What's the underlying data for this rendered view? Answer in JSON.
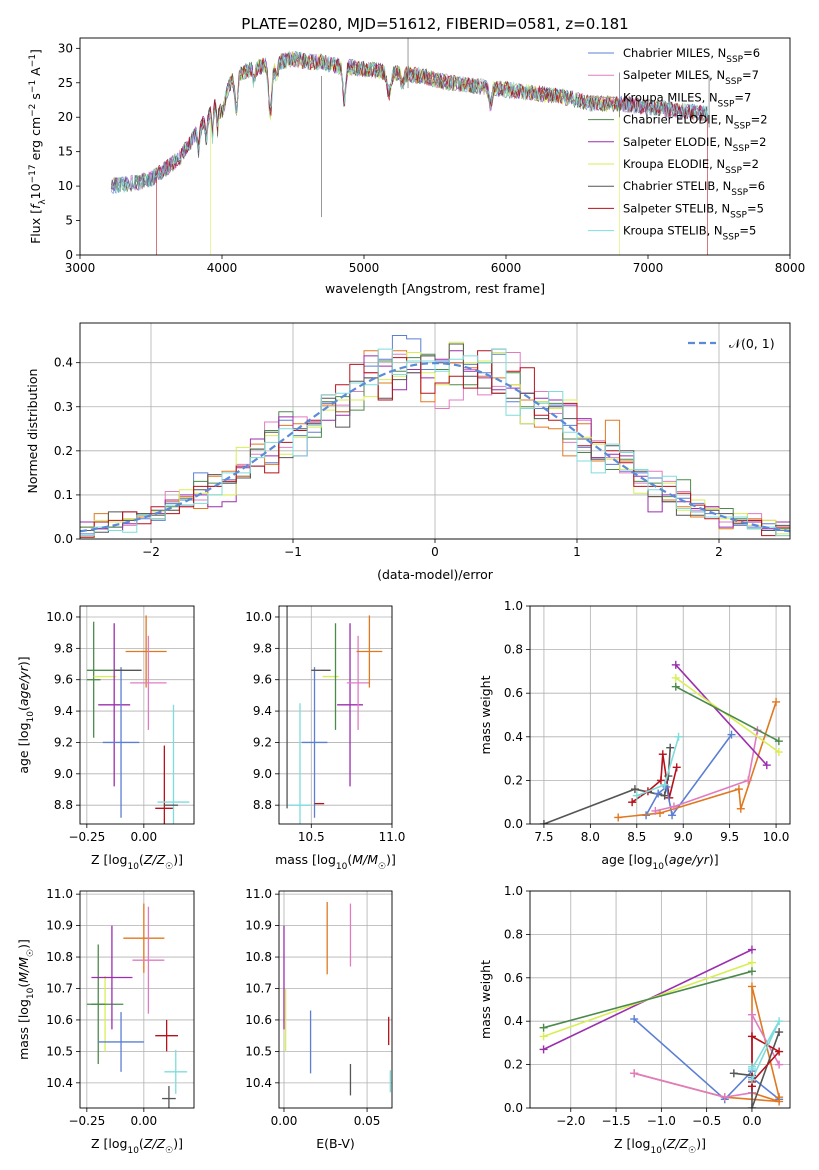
{
  "figure": {
    "title": "PLATE=0280, MJD=51612, FIBERID=0581, z=0.181"
  },
  "colors": {
    "Chabrier MILES": "#5b7fd4",
    "Salpeter MILES": "#e07cc0",
    "Kroupa MILES": "#b0a080",
    "Chabrier ELODIE": "#4c8a4c",
    "Salpeter ELODIE": "#9b2fae",
    "Kroupa ELODIE": "#d8ee55",
    "Chabrier STELIB": "#555555",
    "Salpeter STELIB": "#b5121b",
    "Kroupa STELIB": "#7fdcdc",
    "orange": "#e07820",
    "normal_fit": "#5b8bd8"
  },
  "chart_data": [
    {
      "id": "spectrum",
      "type": "line",
      "xlabel": "wavelength [Angstrom, rest frame]",
      "ylabel": "Flux [f_λ10^-17 erg cm^-2 s^-1 A^-1]",
      "xlim": [
        3000,
        8000
      ],
      "ylim": [
        0,
        31.5
      ],
      "xticks": [
        3000,
        4000,
        5000,
        6000,
        7000,
        8000
      ],
      "yticks": [
        0,
        5,
        10,
        15,
        20,
        25,
        30
      ],
      "legend_position": "top-right",
      "series": [
        {
          "name": "Chabrier MILES",
          "nssp": "6"
        },
        {
          "name": "Salpeter MILES",
          "nssp": "7"
        },
        {
          "name": "Kroupa MILES",
          "nssp": "7"
        },
        {
          "name": "Chabrier ELODIE",
          "nssp": "2"
        },
        {
          "name": "Salpeter ELODIE",
          "nssp": "2"
        },
        {
          "name": "Kroupa ELODIE",
          "nssp": "2"
        },
        {
          "name": "Chabrier STELIB",
          "nssp": "6"
        },
        {
          "name": "Salpeter STELIB",
          "nssp": "5"
        },
        {
          "name": "Kroupa STELIB",
          "nssp": "5"
        }
      ],
      "continuum": {
        "x": [
          3220,
          3400,
          3500,
          3600,
          3700,
          3800,
          3900,
          4000,
          4100,
          4200,
          4300,
          4400,
          4500,
          4600,
          4700,
          4800,
          5000,
          5200,
          5400,
          5600,
          5800,
          6000,
          6200,
          6400,
          6600,
          6800,
          7000,
          7200,
          7400
        ],
        "y": [
          10.0,
          10.5,
          11.0,
          12.5,
          14.0,
          17.0,
          20.0,
          24.0,
          26.0,
          27.0,
          27.5,
          28.0,
          28.5,
          28.0,
          28.0,
          27.5,
          27.0,
          26.5,
          26.0,
          25.0,
          24.5,
          24.0,
          23.5,
          23.0,
          22.0,
          22.0,
          21.5,
          21.0,
          20.5
        ]
      }
    },
    {
      "id": "residuals",
      "type": "line",
      "xlabel": "(data-model)/error",
      "ylabel": "Normed distribution",
      "xlim": [
        -2.5,
        2.5
      ],
      "ylim": [
        0,
        0.49
      ],
      "xticks": [
        -2,
        -1,
        0,
        1,
        2
      ],
      "yticks": [
        0.0,
        0.1,
        0.2,
        0.3,
        0.4
      ],
      "grid": true,
      "legend_position": "top-right",
      "normal_label": "𝒩(0, 1)",
      "hist_bins": 50,
      "hist_range": [
        -2.5,
        2.5
      ]
    },
    {
      "id": "age_vs_Z",
      "type": "scatter",
      "xlabel": "Z [log10(Z/Z☉)]",
      "ylabel": "age  [log10(age/yr)]",
      "xlim": [
        -0.28,
        0.22
      ],
      "ylim": [
        8.68,
        10.07
      ],
      "xticks": [
        -0.25,
        0.0
      ],
      "yticks": [
        8.8,
        9.0,
        9.2,
        9.4,
        9.6,
        9.8,
        10.0
      ],
      "grid": true,
      "points": [
        {
          "series": "Chabrier ELODIE",
          "x": -0.22,
          "y": 9.6,
          "xerr": 0.03,
          "yerr": 0.37
        },
        {
          "series": "Chabrier ELODIE",
          "x": -0.17,
          "y": 9.66,
          "xerr": 0.08,
          "yerr": 0.0
        },
        {
          "series": "Kroupa ELODIE",
          "x": -0.17,
          "y": 9.62,
          "xerr": 0.05,
          "yerr": 0.0
        },
        {
          "series": "Salpeter ELODIE",
          "x": -0.13,
          "y": 9.44,
          "xerr": 0.07,
          "yerr": 0.52
        },
        {
          "series": "Chabrier MILES",
          "x": -0.1,
          "y": 9.2,
          "xerr": 0.08,
          "yerr": 0.48
        },
        {
          "series": "Chabrier STELIB",
          "x": -0.07,
          "y": 9.66,
          "xerr": 0.06,
          "yerr": 0.0
        },
        {
          "series": "orange",
          "x": 0.01,
          "y": 9.78,
          "xerr": 0.09,
          "yerr": 0.23
        },
        {
          "series": "Salpeter MILES",
          "x": 0.02,
          "y": 9.58,
          "xerr": 0.08,
          "yerr": 0.3
        },
        {
          "series": "Salpeter STELIB",
          "x": 0.09,
          "y": 8.78,
          "xerr": 0.04,
          "yerr": 0.4
        },
        {
          "series": "Kroupa STELIB",
          "x": 0.13,
          "y": 8.82,
          "xerr": 0.07,
          "yerr": 0.62
        },
        {
          "series": "Chabrier STELIB",
          "x": 0.12,
          "y": 8.8,
          "xerr": 0.03,
          "yerr": 0.0
        }
      ]
    },
    {
      "id": "age_vs_mass",
      "type": "scatter",
      "xlabel": "mass [log10(M/M☉)]",
      "ylabel": "",
      "xlim": [
        10.3,
        11.0
      ],
      "ylim": [
        8.68,
        10.07
      ],
      "xticks": [
        10.5,
        11.0
      ],
      "yticks": [
        8.8,
        9.0,
        9.2,
        9.4,
        9.6,
        9.8,
        10.0
      ],
      "grid": true,
      "points": [
        {
          "series": "Chabrier STELIB",
          "x": 10.35,
          "y": 9.6,
          "xerr": 0.0,
          "yerr": 0.82
        },
        {
          "series": "Kroupa STELIB",
          "x": 10.43,
          "y": 8.8,
          "xerr": 0.07,
          "yerr": 0.65
        },
        {
          "series": "Chabrier MILES",
          "x": 10.52,
          "y": 9.2,
          "xerr": 0.08,
          "yerr": 0.48
        },
        {
          "series": "Chabrier STELIB",
          "x": 10.56,
          "y": 9.66,
          "xerr": 0.06,
          "yerr": 0.0
        },
        {
          "series": "Salpeter STELIB",
          "x": 10.55,
          "y": 8.81,
          "xerr": 0.03,
          "yerr": 0.0
        },
        {
          "series": "Kroupa ELODIE",
          "x": 10.62,
          "y": 9.62,
          "xerr": 0.05,
          "yerr": 0.0
        },
        {
          "series": "Chabrier ELODIE",
          "x": 10.65,
          "y": 9.62,
          "xerr": 0.0,
          "yerr": 0.34
        },
        {
          "series": "Salpeter ELODIE",
          "x": 10.74,
          "y": 9.44,
          "xerr": 0.08,
          "yerr": 0.52
        },
        {
          "series": "Salpeter MILES",
          "x": 10.79,
          "y": 9.58,
          "xerr": 0.07,
          "yerr": 0.3
        },
        {
          "series": "orange",
          "x": 10.86,
          "y": 9.78,
          "xerr": 0.08,
          "yerr": 0.23
        }
      ]
    },
    {
      "id": "weight_vs_age",
      "type": "line",
      "xlabel": "age  [log10(age/yr)]",
      "ylabel": "mass weight",
      "xlim": [
        7.35,
        10.15
      ],
      "ylim": [
        0,
        1.0
      ],
      "xticks": [
        7.5,
        8.0,
        8.5,
        9.0,
        9.5,
        10.0
      ],
      "yticks": [
        0.0,
        0.2,
        0.4,
        0.6,
        0.8,
        1.0
      ],
      "grid": true,
      "series": [
        {
          "name": "Chabrier STELIB",
          "x": [
            7.5,
            8.48,
            8.8,
            8.84,
            8.86
          ],
          "y": [
            0.0,
            0.16,
            0.13,
            0.22,
            0.35
          ]
        },
        {
          "name": "Salpeter STELIB",
          "x": [
            8.45,
            8.62,
            8.76,
            8.78,
            8.85,
            8.93
          ],
          "y": [
            0.1,
            0.15,
            0.2,
            0.32,
            0.12,
            0.26
          ]
        },
        {
          "name": "Chabrier MILES",
          "x": [
            8.6,
            8.73,
            8.82,
            8.88,
            9.52
          ],
          "y": [
            0.04,
            0.14,
            0.17,
            0.04,
            0.41
          ]
        },
        {
          "name": "orange",
          "x": [
            8.3,
            8.75,
            9.6,
            9.62,
            10.0
          ],
          "y": [
            0.03,
            0.05,
            0.16,
            0.07,
            0.56
          ]
        },
        {
          "name": "Salpeter MILES",
          "x": [
            8.7,
            8.9,
            9.7,
            9.8
          ],
          "y": [
            0.06,
            0.08,
            0.2,
            0.43
          ]
        },
        {
          "name": "Kroupa STELIB",
          "x": [
            8.5,
            8.8,
            8.95
          ],
          "y": [
            0.13,
            0.18,
            0.4
          ]
        },
        {
          "name": "Salpeter ELODIE",
          "x": [
            8.92,
            9.9
          ],
          "y": [
            0.73,
            0.27
          ]
        },
        {
          "name": "Kroupa ELODIE",
          "x": [
            8.92,
            10.03
          ],
          "y": [
            0.67,
            0.33
          ]
        },
        {
          "name": "Chabrier ELODIE",
          "x": [
            8.92,
            10.03
          ],
          "y": [
            0.63,
            0.38
          ]
        }
      ]
    },
    {
      "id": "mass_vs_Z",
      "type": "scatter",
      "xlabel": "Z [log10(Z/Z☉)]",
      "ylabel": "mass [log10(M/M☉)]",
      "xlim": [
        -0.28,
        0.22
      ],
      "ylim": [
        10.32,
        11.01
      ],
      "xticks": [
        -0.25,
        0.0
      ],
      "yticks": [
        10.4,
        10.5,
        10.6,
        10.7,
        10.8,
        10.9,
        11.0
      ],
      "grid": true,
      "points": [
        {
          "series": "Chabrier ELODIE",
          "x": -0.2,
          "y": 10.65,
          "xerr": 0.03,
          "yerr": 0.19
        },
        {
          "series": "Kroupa ELODIE",
          "x": -0.17,
          "y": 10.62,
          "xerr": 0.0,
          "yerr": 0.12
        },
        {
          "series": "Chabrier ELODIE",
          "x": -0.17,
          "y": 10.65,
          "xerr": 0.08,
          "yerr": 0.0
        },
        {
          "series": "Salpeter ELODIE",
          "x": -0.14,
          "y": 10.735,
          "xerr": 0.09,
          "yerr": 0.165
        },
        {
          "series": "Chabrier MILES",
          "x": -0.1,
          "y": 10.53,
          "xerr": 0.1,
          "yerr": 0.095
        },
        {
          "series": "orange",
          "x": 0.0,
          "y": 10.86,
          "xerr": 0.09,
          "yerr": 0.11
        },
        {
          "series": "Salpeter MILES",
          "x": 0.02,
          "y": 10.79,
          "xerr": 0.07,
          "yerr": 0.17
        },
        {
          "series": "Salpeter STELIB",
          "x": 0.1,
          "y": 10.55,
          "xerr": 0.05,
          "yerr": 0.05
        },
        {
          "series": "Kroupa STELIB",
          "x": 0.14,
          "y": 10.435,
          "xerr": 0.05,
          "yerr": 0.07
        },
        {
          "series": "Chabrier STELIB",
          "x": 0.11,
          "y": 10.35,
          "xerr": 0.03,
          "yerr": 0.04
        }
      ]
    },
    {
      "id": "mass_vs_EBV",
      "type": "scatter",
      "xlabel": "E(B-V)",
      "ylabel": "",
      "xlim": [
        -0.003,
        0.065
      ],
      "ylim": [
        10.32,
        11.01
      ],
      "xticks": [
        0.0,
        0.05
      ],
      "yticks": [
        10.4,
        10.5,
        10.6,
        10.7,
        10.8,
        10.9,
        11.0
      ],
      "grid": true,
      "points": [
        {
          "series": "Salpeter ELODIE",
          "x": 0.0,
          "y": 10.735,
          "xerr": 0.0,
          "yerr": 0.165
        },
        {
          "series": "Kroupa ELODIE",
          "x": 0.001,
          "y": 10.6,
          "xerr": 0.0,
          "yerr": 0.1
        },
        {
          "series": "Chabrier MILES",
          "x": 0.016,
          "y": 10.53,
          "xerr": 0.0,
          "yerr": 0.1
        },
        {
          "series": "orange",
          "x": 0.026,
          "y": 10.86,
          "xerr": 0.0,
          "yerr": 0.115
        },
        {
          "series": "Chabrier STELIB",
          "x": 0.04,
          "y": 10.41,
          "xerr": 0.0,
          "yerr": 0.05
        },
        {
          "series": "Salpeter MILES",
          "x": 0.04,
          "y": 10.87,
          "xerr": 0.0,
          "yerr": 0.1
        },
        {
          "series": "Salpeter STELIB",
          "x": 0.063,
          "y": 10.565,
          "xerr": 0.0,
          "yerr": 0.045
        },
        {
          "series": "Kroupa STELIB",
          "x": 0.064,
          "y": 10.405,
          "xerr": 0.0,
          "yerr": 0.035
        }
      ]
    },
    {
      "id": "weight_vs_Z",
      "type": "line",
      "xlabel": "Z [log10(Z/Z☉)]",
      "ylabel": "mass weight",
      "xlim": [
        -2.45,
        0.42
      ],
      "ylim": [
        0,
        1.0
      ],
      "xticks": [
        -2.0,
        -1.5,
        -1.0,
        -0.5,
        0.0
      ],
      "yticks": [
        0.0,
        0.2,
        0.4,
        0.6,
        0.8,
        1.0
      ],
      "grid": true,
      "series": [
        {
          "name": "Salpeter ELODIE",
          "x": [
            -2.3,
            0.0
          ],
          "y": [
            0.27,
            0.73
          ]
        },
        {
          "name": "Kroupa ELODIE",
          "x": [
            -2.3,
            0.0
          ],
          "y": [
            0.33,
            0.67
          ]
        },
        {
          "name": "Chabrier ELODIE",
          "x": [
            -2.3,
            0.0
          ],
          "y": [
            0.37,
            0.63
          ]
        },
        {
          "name": "Chabrier MILES",
          "x": [
            -1.3,
            -0.3,
            0.0,
            0.0,
            0.3
          ],
          "y": [
            0.41,
            0.04,
            0.17,
            0.14,
            0.04
          ]
        },
        {
          "name": "orange",
          "x": [
            -1.3,
            -0.3,
            0.3,
            0.0,
            0.0,
            0.3
          ],
          "y": [
            0.16,
            0.05,
            0.03,
            0.07,
            0.56,
            0.05
          ]
        },
        {
          "name": "Salpeter MILES",
          "x": [
            -1.3,
            -0.3,
            0.0,
            0.0,
            0.3
          ],
          "y": [
            0.16,
            0.05,
            0.07,
            0.43,
            0.2
          ]
        },
        {
          "name": "Chabrier STELIB",
          "x": [
            -0.2,
            0.0,
            0.0,
            0.3
          ],
          "y": [
            0.16,
            0.15,
            0.0,
            0.35
          ]
        },
        {
          "name": "Salpeter STELIB",
          "x": [
            0.0,
            0.0,
            0.3,
            0.0
          ],
          "y": [
            0.1,
            0.33,
            0.26,
            0.12
          ]
        },
        {
          "name": "Kroupa STELIB",
          "x": [
            0.0,
            0.3,
            0.0,
            0.0
          ],
          "y": [
            0.13,
            0.4,
            0.18,
            0.19
          ]
        }
      ]
    }
  ]
}
